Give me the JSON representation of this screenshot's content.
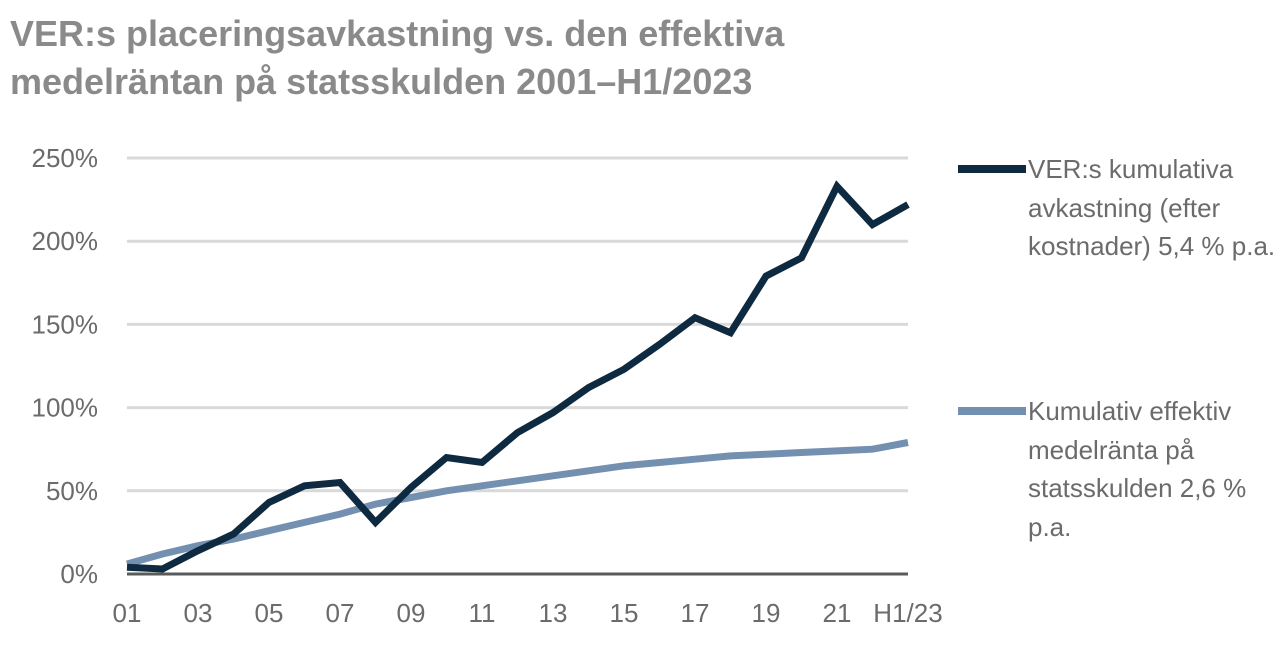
{
  "title": {
    "line1": "VER:s placeringsavkastning vs. den effektiva",
    "line2": "medelräntan på statsskulden 2001–H1/2023"
  },
  "chart_data": {
    "type": "line",
    "title": "VER:s placeringsavkastning vs. den effektiva medelräntan på statsskulden 2001–H1/2023",
    "xlabel": "",
    "ylabel": "",
    "x": [
      "01",
      "02",
      "03",
      "04",
      "05",
      "06",
      "07",
      "08",
      "09",
      "10",
      "11",
      "12",
      "13",
      "14",
      "15",
      "16",
      "17",
      "18",
      "19",
      "20",
      "21",
      "22",
      "H1/23"
    ],
    "x_tick_labels": [
      "01",
      "03",
      "05",
      "07",
      "09",
      "11",
      "13",
      "15",
      "17",
      "19",
      "21",
      "H1/23"
    ],
    "y_tick_labels": [
      "0%",
      "50%",
      "100%",
      "150%",
      "200%",
      "250%"
    ],
    "ylim": [
      0,
      250
    ],
    "grid": true,
    "legend_position": "right",
    "series": [
      {
        "name": "VER:s kumulativa avkastning (efter kostnader) 5,4 % p.a.",
        "color": "#0e2a40",
        "values": [
          4,
          3,
          14,
          24,
          43,
          53,
          55,
          31,
          52,
          70,
          67,
          85,
          97,
          112,
          123,
          138,
          154,
          145,
          179,
          190,
          233,
          210,
          222
        ]
      },
      {
        "name": "Kumulativ effektiv medelränta på statsskulden 2,6 % p.a.",
        "color": "#7390b0",
        "values": [
          6,
          12,
          17,
          21,
          26,
          31,
          36,
          42,
          46,
          50,
          53,
          56,
          59,
          62,
          65,
          67,
          69,
          71,
          72,
          73,
          74,
          75,
          79
        ]
      }
    ]
  }
}
